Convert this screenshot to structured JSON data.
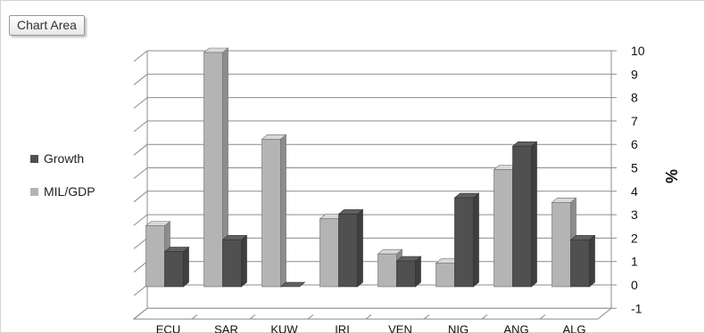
{
  "chart_area_label": "Chart Area",
  "colors": {
    "growth": "#505050",
    "mil_gdp": "#b4b4b4"
  },
  "chart_data": {
    "type": "bar",
    "categories": [
      "ECU",
      "SAR",
      "KUW",
      "IRI",
      "VEN",
      "NIG",
      "ANG",
      "ALG"
    ],
    "series": [
      {
        "name": "Growth",
        "values": [
          1.5,
          2.0,
          0.0,
          3.1,
          1.1,
          3.8,
          6.0,
          2.0
        ]
      },
      {
        "name": "MIL/GDP",
        "values": [
          2.6,
          10.0,
          6.3,
          2.9,
          1.4,
          1.0,
          5.0,
          3.6
        ]
      }
    ],
    "ylabel": "%",
    "ylim": [
      -1,
      10
    ],
    "yticks": [
      "10",
      "9",
      "8",
      "7",
      "6",
      "5",
      "4",
      "3",
      "2",
      "1",
      "0",
      "-1"
    ],
    "legend_position": "left",
    "grid": true
  }
}
